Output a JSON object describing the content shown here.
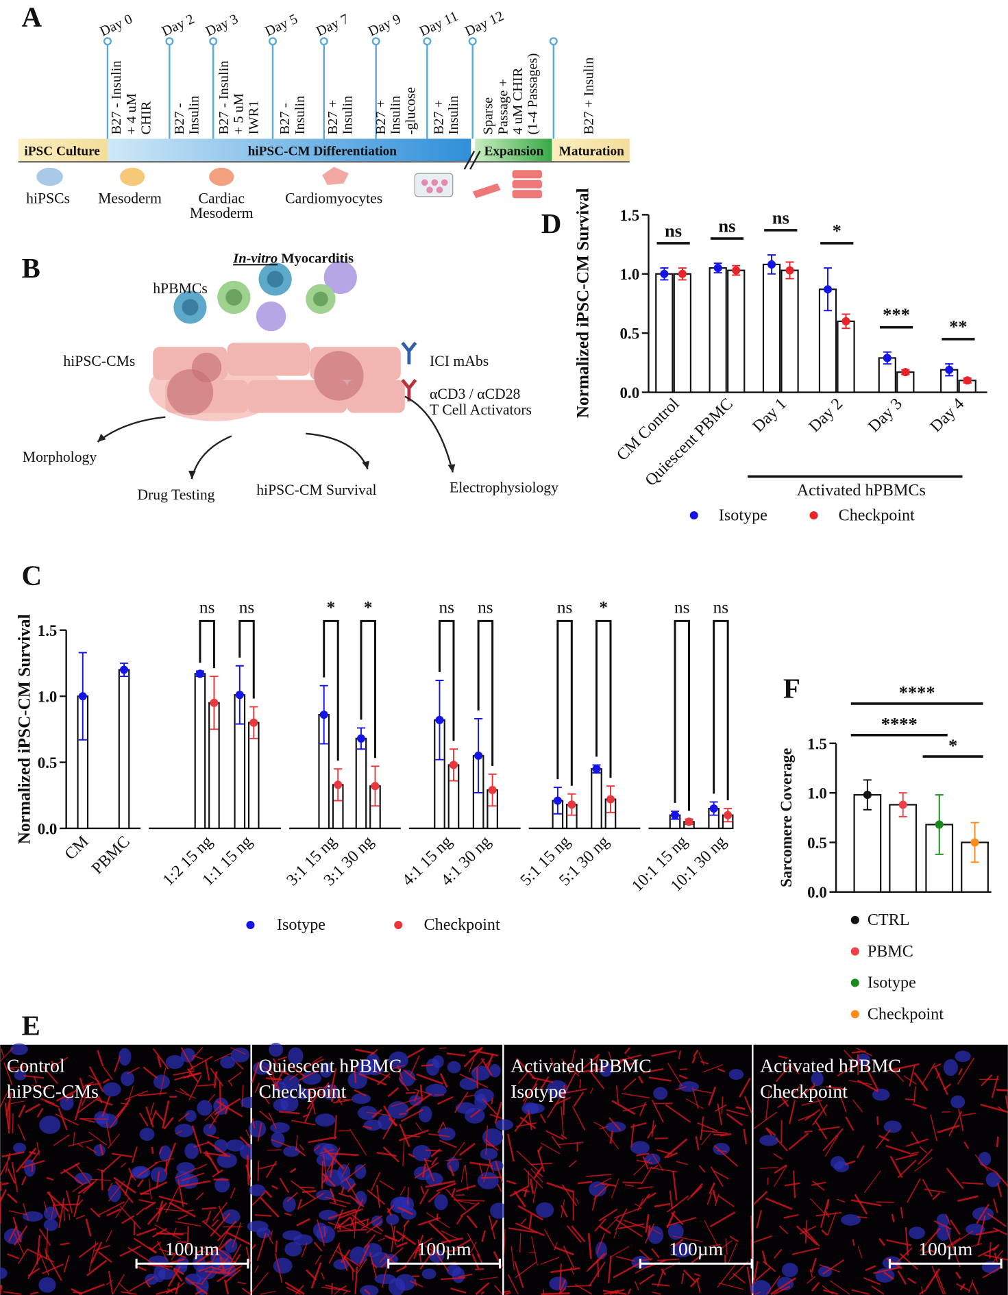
{
  "panel_labels": [
    "A",
    "B",
    "C",
    "D",
    "E",
    "F"
  ],
  "panel_a": {
    "days": [
      "Day 0",
      "Day 2",
      "Day 3",
      "Day 5",
      "Day 7",
      "Day 9",
      "Day 11",
      "Day 12"
    ],
    "media": [
      [
        "B27 - Insulin",
        "+ 4 uM",
        "CHIR"
      ],
      [
        "B27 -",
        "Insulin"
      ],
      [
        "B27 - Insulin",
        "+ 5 uM",
        "IWR1"
      ],
      [
        "B27 -",
        "Insulin"
      ],
      [
        "B27 +",
        "Insulin"
      ],
      [
        "B27 +",
        "Insulin",
        "-glucose"
      ],
      [
        "B27 +",
        "Insulin"
      ],
      [
        "Sparse",
        "Passage +",
        "4 uM CHIR",
        "(1-4 Passages)"
      ],
      [
        "B27 + Insulin"
      ]
    ],
    "stages": [
      "iPSC Culture",
      "hiPSC-CM Differentiation",
      "Expansion",
      "Maturation"
    ],
    "cells": [
      [
        "hiPSCs"
      ],
      [
        "Mesoderm"
      ],
      [
        "Cardiac",
        "Mesoderm"
      ],
      [
        "Cardiomyocytes"
      ]
    ]
  },
  "panel_b": {
    "title": [
      "In-vitro",
      "Myocarditis"
    ],
    "cells_label": "hPBMCs",
    "cm_label": "hiPSC-CMs",
    "legend": [
      [
        "ICI mAbs"
      ],
      [
        "αCD3 / αCD28",
        "T Cell Activators"
      ]
    ],
    "outcomes": [
      "Morphology",
      "Drug Testing",
      "hiPSC-CM Survival",
      "Electrophysiology"
    ]
  },
  "chart_data": [
    {
      "type": "bar",
      "y_label": "Normalized iPSC-CM Survival",
      "categories": [
        "CM Control",
        "Quiescent PBMC",
        "Day 1",
        "Day 2",
        "Day 3",
        "Day 4"
      ],
      "series": [
        {
          "name": "Isotype",
          "color": "#1414e6",
          "values": [
            1.0,
            1.05,
            1.08,
            0.87,
            0.29,
            0.19
          ],
          "errors": [
            0.05,
            0.04,
            0.08,
            0.18,
            0.05,
            0.05
          ]
        },
        {
          "name": "Checkpoint",
          "color": "#e8242a",
          "values": [
            1.0,
            1.03,
            1.03,
            0.6,
            0.17,
            0.1
          ],
          "errors": [
            0.05,
            0.04,
            0.07,
            0.06,
            0.02,
            0.02
          ]
        }
      ],
      "significance": [
        "ns",
        "ns",
        "ns",
        "*",
        "***",
        "**"
      ],
      "group_label": "Activated hPBMCs",
      "bar_fill": "#ffffff",
      "ylim": [
        0,
        1.5
      ],
      "yticks": [
        {
          "value": 0,
          "label": "0.0"
        },
        0.5,
        {
          "value": 1,
          "label": "1.0"
        },
        1.5
      ],
      "legend": "bottom"
    },
    {
      "type": "bar",
      "y_label": "Normalized iPSC-CM Survival",
      "categories": [
        "CM",
        "PBMC",
        "1:2 15 ng",
        "1:1 15 ng",
        "3:1 15 ng",
        "3:1 30 ng",
        "4:1 15 ng",
        "4:1 30 ng",
        "5:1 15 ng",
        "5:1 30 ng",
        "10:1 15 ng",
        "10:1 30 ng"
      ],
      "series": [
        {
          "name": "Isotype",
          "color": "#1414e6",
          "values": [
            1.0,
            1.2,
            1.17,
            1.01,
            0.86,
            0.68,
            0.82,
            0.55,
            0.21,
            0.45,
            0.1,
            0.15
          ],
          "errors": [
            0.33,
            0.05,
            0.02,
            0.22,
            0.22,
            0.08,
            0.3,
            0.28,
            0.1,
            0.03,
            0.03,
            0.05
          ]
        },
        {
          "name": "Checkpoint",
          "color": "#e8383d",
          "values": [
            null,
            null,
            0.95,
            0.8,
            0.33,
            0.32,
            0.48,
            0.29,
            0.18,
            0.22,
            0.05,
            0.1
          ],
          "errors": [
            null,
            null,
            0.2,
            0.12,
            0.12,
            0.15,
            0.12,
            0.12,
            0.08,
            0.1,
            0.02,
            0.05
          ]
        }
      ],
      "significance": [
        null,
        null,
        "ns",
        "ns",
        "*",
        "*",
        "ns",
        "ns",
        "ns",
        "*",
        "ns",
        "ns"
      ],
      "bar_fill": "#ffffff",
      "ylim": [
        0,
        1.5
      ],
      "yticks": [
        {
          "value": 0,
          "label": "0.0"
        },
        0.5,
        {
          "value": 1,
          "label": "1.0"
        },
        1.5
      ],
      "legend": "bottom"
    },
    {
      "type": "bar",
      "y_label": "Sarcomere Coverage",
      "series": [
        {
          "name": "CTRL",
          "color": "#111111",
          "values": [
            0.98
          ],
          "errors": [
            0.15
          ]
        },
        {
          "name": "PBMC",
          "color": "#f0404a",
          "values": [
            0.88
          ],
          "errors": [
            0.12
          ]
        },
        {
          "name": "Isotype",
          "color": "#1a8a1a",
          "values": [
            0.68
          ],
          "errors": [
            0.3
          ]
        },
        {
          "name": "Checkpoint",
          "color": "#ff8c1a",
          "values": [
            0.5
          ],
          "errors": [
            0.2
          ]
        }
      ],
      "significance": [
        "****",
        "****",
        "*"
      ],
      "bar_fill": "#ffffff",
      "ylim": [
        0,
        1.5
      ],
      "yticks": [
        {
          "value": 0,
          "label": "0.0"
        },
        0.5,
        {
          "value": 1,
          "label": "1.0"
        },
        1.5
      ],
      "legend": "bottom"
    }
  ],
  "panel_e": {
    "images": [
      {
        "label": [
          "Control",
          "hiPSC-CMs"
        ],
        "scale": "100µm"
      },
      {
        "label": [
          "Quiescent hPBMC",
          "Checkpoint"
        ],
        "scale": "100µm"
      },
      {
        "label": [
          "Activated hPBMC",
          "Isotype"
        ],
        "scale": "100µm"
      },
      {
        "label": [
          "Activated hPBMC",
          "Checkpoint"
        ],
        "scale": "100µm"
      }
    ]
  }
}
